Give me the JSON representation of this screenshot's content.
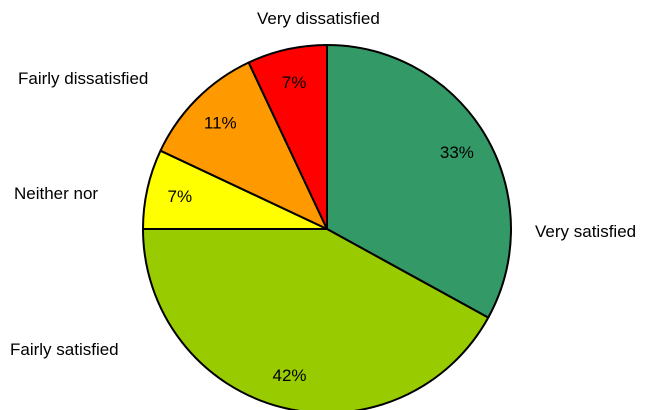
{
  "chart_data": {
    "type": "pie",
    "title": "",
    "start_angle_deg": 0,
    "direction": "clockwise",
    "slices": [
      {
        "label": "Very satisfied",
        "value": 33,
        "data_label": "33%",
        "color": "#339966"
      },
      {
        "label": "Fairly satisfied",
        "value": 42,
        "data_label": "42%",
        "color": "#99CC00"
      },
      {
        "label": "Neither nor",
        "value": 7,
        "data_label": "7%",
        "color": "#FFFF00"
      },
      {
        "label": "Fairly dissatisfied",
        "value": 11,
        "data_label": "11%",
        "color": "#FF9900"
      },
      {
        "label": "Very dissatisfied",
        "value": 7,
        "data_label": "7%",
        "color": "#FF0000"
      }
    ],
    "legend": "none",
    "slice_border_color": "#000000"
  }
}
